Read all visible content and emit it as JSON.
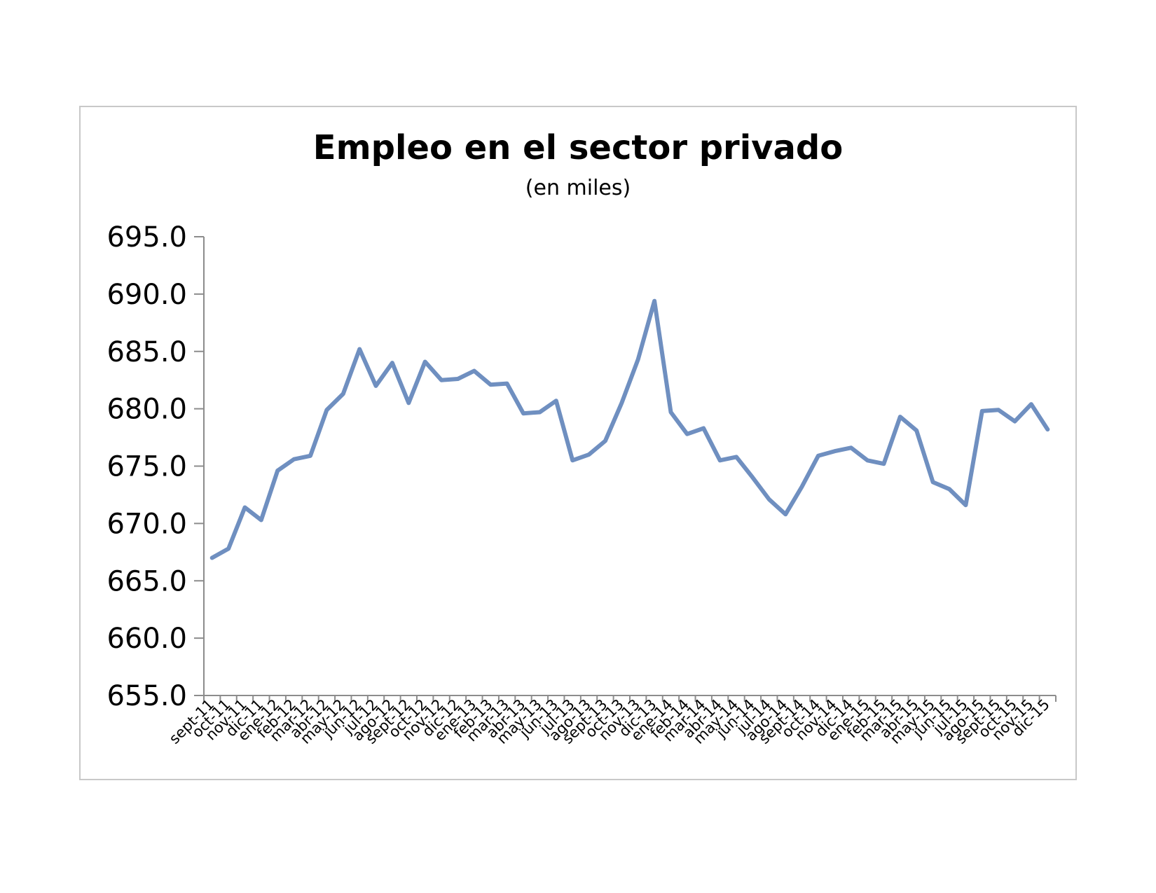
{
  "chart_data": {
    "type": "line",
    "title": "Empleo en el sector privado",
    "subtitle": "(en miles)",
    "xlabel": "",
    "ylabel": "",
    "ylim": [
      655,
      695
    ],
    "yticks": [
      "655.0",
      "660.0",
      "665.0",
      "670.0",
      "675.0",
      "680.0",
      "685.0",
      "690.0",
      "695.0"
    ],
    "grid": false,
    "legend": "none",
    "line_color": "#6f8fc0",
    "categories": [
      "sept-11",
      "oct-11",
      "nov-11",
      "dic-11",
      "ene-12",
      "feb-12",
      "mar-12",
      "abr-12",
      "may-12",
      "jun-12",
      "jul-12",
      "ago-12",
      "sept-12",
      "oct-12",
      "nov-12",
      "dic-12",
      "ene-13",
      "feb-13",
      "mar-13",
      "abr-13",
      "may-13",
      "jun-13",
      "jul-13",
      "ago-13",
      "sept-13",
      "oct-13",
      "nov-13",
      "dic-13",
      "ene-14",
      "feb-14",
      "mar-14",
      "abr-14",
      "may-14",
      "jun-14",
      "jul-14",
      "ago-14",
      "sept-14",
      "oct-14",
      "nov-14",
      "dic-14",
      "ene-15",
      "feb-15",
      "mar-15",
      "abr-15",
      "may-15",
      "jun-15",
      "jul-15",
      "ago-15",
      "sept-15",
      "oct-15",
      "nov-15",
      "dic-15"
    ],
    "series": [
      {
        "values": [
          667.0,
          667.8,
          671.4,
          670.3,
          674.6,
          675.6,
          675.9,
          679.9,
          681.3,
          685.2,
          682.0,
          684.0,
          680.5,
          684.1,
          682.5,
          682.6,
          683.3,
          682.1,
          682.2,
          679.6,
          679.7,
          680.7,
          675.5,
          676.0,
          677.2,
          680.5,
          684.3,
          689.4,
          679.7,
          677.8,
          678.3,
          675.5,
          675.8,
          674.0,
          672.1,
          670.8,
          673.2,
          675.9,
          676.3,
          676.6,
          675.5,
          675.2,
          679.3,
          678.1,
          673.6,
          673.0,
          671.6,
          679.8,
          679.9,
          678.9,
          680.4,
          678.2
        ]
      }
    ]
  }
}
